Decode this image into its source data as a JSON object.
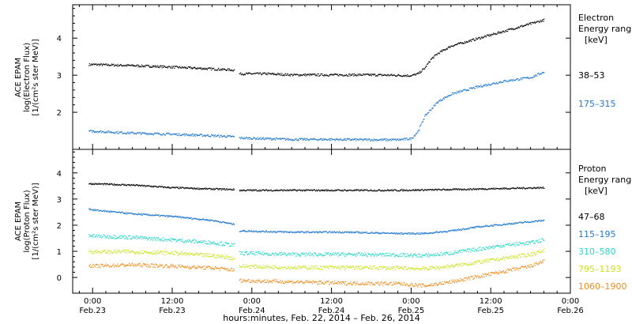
{
  "chart_data": [
    {
      "type": "scatter",
      "panel": "electron",
      "ylabel_lines": [
        "ACE EPAM",
        "log(Electron Flux)",
        "[1/(cm²s ster MeV)]"
      ],
      "ylim": [
        1.0,
        4.9
      ],
      "yticks": [
        "2",
        "3",
        "4"
      ],
      "legend_title_lines": [
        "Electron",
        "Energy range",
        "[keV]"
      ],
      "series": [
        {
          "name": "38–53",
          "color": "#000000",
          "x": [
            -0.6,
            0,
            6,
            12,
            18,
            21.3,
            22,
            26,
            30,
            36,
            42,
            48,
            49,
            50,
            51,
            52,
            54,
            58,
            62,
            66,
            68
          ],
          "y": [
            3.3,
            3.3,
            3.27,
            3.23,
            3.18,
            3.15,
            3.05,
            3.05,
            3.02,
            3.02,
            3.02,
            3.0,
            3.05,
            3.2,
            3.45,
            3.6,
            3.8,
            4.0,
            4.2,
            4.4,
            4.5
          ]
        },
        {
          "name": "175–315",
          "color": "#1f78d0",
          "x": [
            -0.6,
            0,
            6,
            12,
            18,
            21.3,
            22,
            26,
            30,
            36,
            42,
            46,
            48,
            49,
            50,
            51,
            52,
            54,
            58,
            62,
            66,
            68
          ],
          "y": [
            1.5,
            1.5,
            1.45,
            1.42,
            1.38,
            1.35,
            1.32,
            1.3,
            1.28,
            1.28,
            1.27,
            1.27,
            1.3,
            1.5,
            1.9,
            2.1,
            2.3,
            2.5,
            2.7,
            2.85,
            2.95,
            3.1
          ]
        }
      ]
    },
    {
      "type": "scatter",
      "panel": "proton",
      "ylabel_lines": [
        "ACE EPAM",
        "log(Proton Flux)",
        "[1/(cm²s ster MeV)]"
      ],
      "ylim": [
        -0.6,
        4.9
      ],
      "yticks": [
        "0",
        "1",
        "2",
        "3",
        "4"
      ],
      "legend_title_lines": [
        "Proton",
        "Energy range",
        "[keV]"
      ],
      "series": [
        {
          "name": "47–68",
          "color": "#000000",
          "x": [
            -0.6,
            0,
            6,
            12,
            18,
            21.3,
            22,
            30,
            38,
            46,
            54,
            62,
            68
          ],
          "y": [
            3.6,
            3.6,
            3.55,
            3.45,
            3.4,
            3.38,
            3.35,
            3.35,
            3.35,
            3.35,
            3.38,
            3.42,
            3.45
          ]
        },
        {
          "name": "115–195",
          "color": "#1f78d0",
          "x": [
            -0.6,
            0,
            6,
            12,
            18,
            21.3,
            22,
            30,
            38,
            46,
            50,
            54,
            58,
            62,
            66,
            68
          ],
          "y": [
            2.65,
            2.6,
            2.45,
            2.35,
            2.2,
            2.05,
            1.8,
            1.75,
            1.75,
            1.7,
            1.7,
            1.8,
            1.95,
            2.05,
            2.15,
            2.2
          ]
        },
        {
          "name": "310–580",
          "color": "#22d8c8",
          "x": [
            -0.6,
            0,
            6,
            12,
            18,
            21.3,
            22,
            30,
            38,
            46,
            50,
            54,
            58,
            62,
            66,
            68
          ],
          "y": [
            1.65,
            1.6,
            1.55,
            1.45,
            1.35,
            1.25,
            0.95,
            0.9,
            0.9,
            0.88,
            0.85,
            0.95,
            1.1,
            1.25,
            1.35,
            1.45
          ]
        },
        {
          "name": "795–1193",
          "color": "#c8e41a",
          "x": [
            -0.6,
            0,
            6,
            12,
            18,
            21.3,
            22,
            30,
            38,
            46,
            50,
            54,
            58,
            62,
            66,
            68
          ],
          "y": [
            1.05,
            1.0,
            1.0,
            0.95,
            0.85,
            0.75,
            0.45,
            0.4,
            0.4,
            0.38,
            0.35,
            0.45,
            0.6,
            0.75,
            0.9,
            1.05
          ]
        },
        {
          "name": "1060–1900",
          "color": "#f08a1a",
          "x": [
            -0.6,
            0,
            6,
            12,
            18,
            21.3,
            22,
            30,
            38,
            46,
            50,
            54,
            58,
            62,
            66,
            68
          ],
          "y": [
            0.5,
            0.45,
            0.5,
            0.45,
            0.38,
            0.3,
            -0.1,
            -0.15,
            -0.2,
            -0.22,
            -0.3,
            -0.15,
            0.05,
            0.25,
            0.45,
            0.65
          ]
        }
      ]
    }
  ],
  "xaxis": {
    "label": "hours:minutes, Feb. 22, 2014 – Feb. 26, 2014",
    "range_hours": [
      -3,
      72
    ],
    "ticks": [
      {
        "hours": 0,
        "time": "0:00",
        "date": "Feb.23"
      },
      {
        "hours": 12,
        "time": "12:00",
        "date": "Feb.23"
      },
      {
        "hours": 24,
        "time": "0:00",
        "date": "Feb.24"
      },
      {
        "hours": 36,
        "time": "12:00",
        "date": "Feb.24"
      },
      {
        "hours": 48,
        "time": "0:00",
        "date": "Feb.25"
      },
      {
        "hours": 60,
        "time": "12:00",
        "date": "Feb.25"
      },
      {
        "hours": 72,
        "time": "0:00",
        "date": "Feb.26"
      }
    ]
  }
}
